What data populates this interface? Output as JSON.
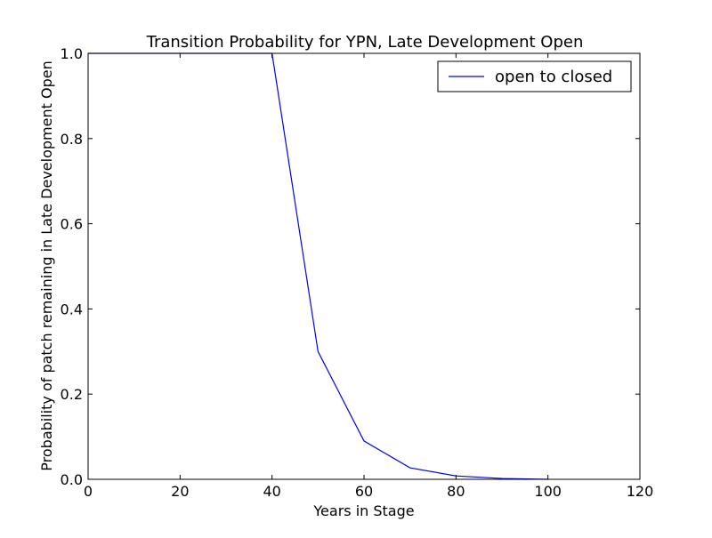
{
  "chart_data": {
    "type": "line",
    "title": "Transition Probability for YPN, Late Development Open",
    "xlabel": "Years in Stage",
    "ylabel": "Probability of patch remaining in Late Development Open",
    "xlim": [
      0,
      120
    ],
    "ylim": [
      0.0,
      1.0
    ],
    "xticks": [
      0,
      20,
      40,
      60,
      80,
      100,
      120
    ],
    "xtick_labels": [
      "0",
      "20",
      "40",
      "60",
      "80",
      "100",
      "120"
    ],
    "yticks": [
      0.0,
      0.2,
      0.4,
      0.6,
      0.8,
      1.0
    ],
    "ytick_labels": [
      "0.0",
      "0.2",
      "0.4",
      "0.6",
      "0.8",
      "1.0"
    ],
    "grid": false,
    "legend_position": "top-right",
    "series": [
      {
        "name": "open to closed",
        "color": "#0000ff",
        "x": [
          0,
          10,
          20,
          30,
          40,
          50,
          60,
          70,
          80,
          90,
          100
        ],
        "y": [
          1.0,
          1.0,
          1.0,
          1.0,
          1.0,
          0.3,
          0.09,
          0.027,
          0.008,
          0.002,
          0.0
        ]
      }
    ]
  }
}
